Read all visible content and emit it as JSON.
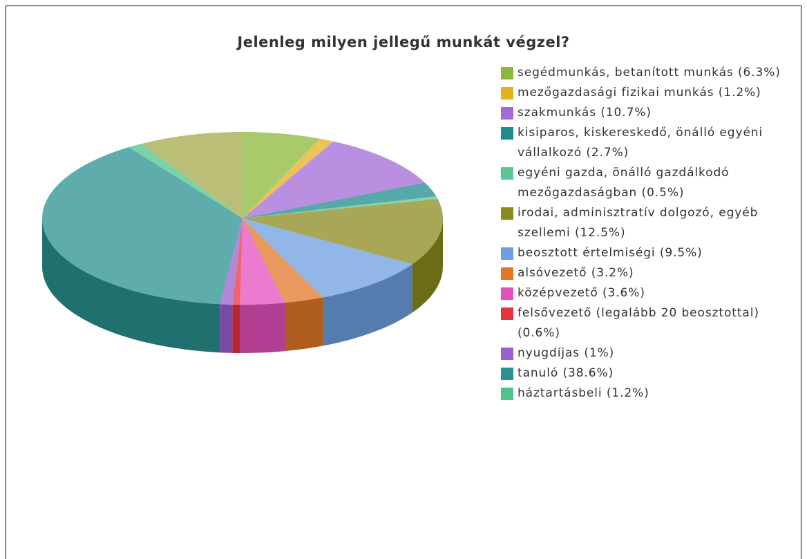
{
  "chart_data": {
    "type": "pie3d",
    "title": "Jelenleg milyen jellegű munkát végzel?",
    "categories": [
      "segédmunkás, betanított munkás",
      "mezőgazdasági fizikai munkás",
      "szakmunkás",
      "kisiparos, kiskereskedő, önálló egyéni vállalkozó",
      "egyéni gazda, önálló gazdálkodó mezőgazdaságban",
      "irodai, adminisztratív dolgozó, egyéb szellemi",
      "beosztott értelmiségi",
      "alsóvezető",
      "középvezető",
      "felsővezető (legalább 20 beosztottal)",
      "nyugdíjas",
      "tanuló",
      "háztartásbeli",
      null
    ],
    "values": [
      6.3,
      1.2,
      10.7,
      2.7,
      0.5,
      12.5,
      9.5,
      3.2,
      3.6,
      0.6,
      1,
      38.6,
      1.2,
      8.4
    ],
    "value_labels": [
      "(6.3%)",
      "(1.2%)",
      "(10.7%)",
      "(2.7%)",
      "(0.5%)",
      "(12.5%)",
      "(9.5%)",
      "(3.2%)",
      "(3.6%)",
      "(0.6%)",
      "(1%)",
      "(38.6%)",
      "(1.2%)",
      null
    ],
    "colors": [
      "#8cb83a",
      "#e4b020",
      "#a36ad8",
      "#1f8b8b",
      "#55c895",
      "#8a8a1e",
      "#6e9ee0",
      "#e07828",
      "#e44fbe",
      "#e8323c",
      "#9a60d0",
      "#2a9090",
      "#4cc48a",
      "#a3a848"
    ],
    "legend": "right"
  }
}
